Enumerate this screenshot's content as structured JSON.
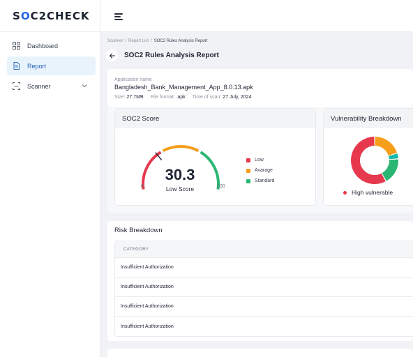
{
  "brand": {
    "logo_prefix": "S",
    "logo_bracket": "O",
    "logo_mid": "C2",
    "logo_suffix": "CHECK"
  },
  "sidebar": {
    "items": [
      {
        "label": "Dashboard",
        "icon": "dashboard-icon",
        "active": false
      },
      {
        "label": "Report",
        "icon": "report-icon",
        "active": true
      },
      {
        "label": "Scanner",
        "icon": "scanner-icon",
        "active": false,
        "expandable": true
      }
    ]
  },
  "breadcrumb": [
    "Scanner",
    "Report List",
    "SOC2 Rules Analysis Report"
  ],
  "page_title": "SOC2 Rules Analysis Report",
  "app_info": {
    "label": "Application name",
    "name": "Bangladesh_Bank_Management_App_8.0.13.apk",
    "size_label": "Size:",
    "size": "27.7MB",
    "format_label": "File format:",
    "format": ".apk",
    "time_label": "Time of scan:",
    "time": "27 July, 2024"
  },
  "soc2_score": {
    "title": "SOC2 Score",
    "score": "30.3",
    "score_value": 30.3,
    "score_label": "Low Score",
    "min": "0",
    "max": "100",
    "legend": [
      {
        "label": "Low",
        "color": "#e6394d"
      },
      {
        "label": "Avarage",
        "color": "#f59e1b"
      },
      {
        "label": "Standard",
        "color": "#2bb673"
      }
    ]
  },
  "vulnerability": {
    "title": "Vulnerability Breakdown",
    "legend_label": "High vulnerable",
    "segments": [
      {
        "name": "red",
        "value": 58,
        "color": "#e6394d"
      },
      {
        "name": "orange",
        "value": 20,
        "color": "#f59e1b"
      },
      {
        "name": "teal",
        "value": 4,
        "color": "#14b8a6"
      },
      {
        "name": "green",
        "value": 18,
        "color": "#2bb673"
      }
    ]
  },
  "risk_breakdown": {
    "title": "Risk Breakdown",
    "column": "CATEGORY",
    "rows": [
      "Insufficient Authorization",
      "Insufficient Authorization",
      "Insufficient Authorization",
      "Insufficient Authorization"
    ]
  }
}
